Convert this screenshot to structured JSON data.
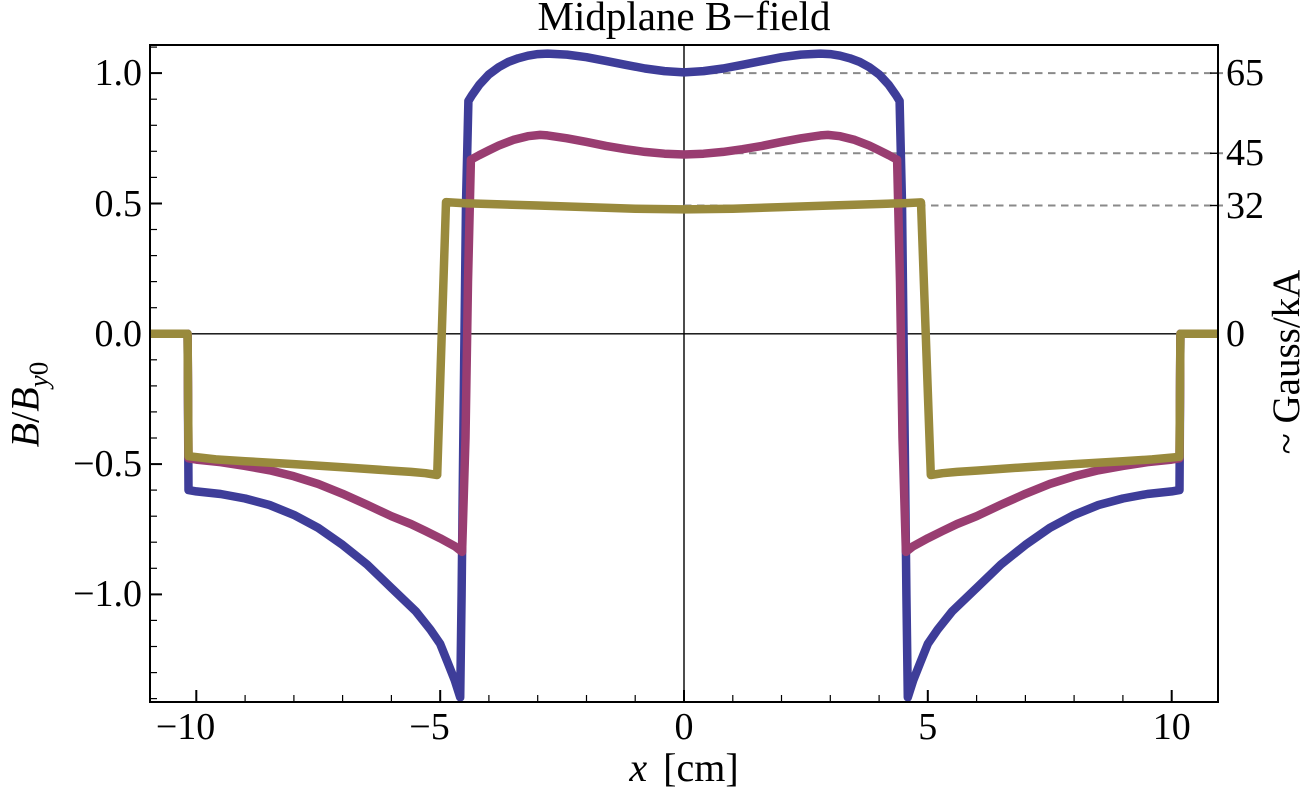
{
  "chart_data": {
    "type": "line",
    "title": "Midplane B−field",
    "xlabel": {
      "variable": "x",
      "unit": "[cm]"
    },
    "ylabel_left": {
      "numerator": "B",
      "slash": "/",
      "denominator": "B",
      "sub_italic": "y",
      "sub_roman": "0"
    },
    "ylabel_right": "~ Gauss/kA",
    "xlim": [
      -10.95,
      10.95
    ],
    "ylim": [
      -1.413,
      1.108
    ],
    "grid": "off",
    "legend": "none",
    "x_ticks": [
      {
        "label": "−10",
        "value": -10
      },
      {
        "label": "−5",
        "value": -5
      },
      {
        "label": "0",
        "value": 0
      },
      {
        "label": "5",
        "value": 5
      },
      {
        "label": "10",
        "value": 10
      }
    ],
    "x_minor_step": 1,
    "y_ticks": [
      {
        "label": "1.0",
        "value": 1.0
      },
      {
        "label": "0.5",
        "value": 0.5
      },
      {
        "label": "0.0",
        "value": 0.0
      },
      {
        "label": "−0.5",
        "value": -0.5
      },
      {
        "label": "−1.0",
        "value": -1.0
      }
    ],
    "y_minor_step": 0.1,
    "right_axis_labels": [
      {
        "label": "65",
        "B": 1.0
      },
      {
        "label": "45",
        "B": 0.6923
      },
      {
        "label": "32",
        "B": 0.4923
      },
      {
        "label": "0",
        "B": 0.0
      }
    ],
    "dashed_guides_B": [
      1.0,
      0.6923,
      0.4923
    ],
    "dashed_guides_start_x": 0,
    "colors": {
      "frame": "#000000",
      "axis": "#000000",
      "dashed_guide": "#8a8a8a",
      "series_blue": "#3E3D99",
      "series_magenta": "#993D71",
      "series_yellow": "#998A3D"
    },
    "series": [
      {
        "name": "series-blue-65GausskA",
        "color": "#3E3D99",
        "center_value_B": 1.0,
        "points": [
          [
            -10.95,
            0
          ],
          [
            -10.18,
            0
          ],
          [
            -10.16,
            -0.6
          ],
          [
            -10.0,
            -0.605
          ],
          [
            -9.5,
            -0.615
          ],
          [
            -9.0,
            -0.632
          ],
          [
            -8.5,
            -0.657
          ],
          [
            -8.0,
            -0.695
          ],
          [
            -7.5,
            -0.745
          ],
          [
            -7.0,
            -0.81
          ],
          [
            -6.5,
            -0.885
          ],
          [
            -6.0,
            -0.975
          ],
          [
            -5.5,
            -1.065
          ],
          [
            -5.2,
            -1.135
          ],
          [
            -5.0,
            -1.19
          ],
          [
            -4.85,
            -1.26
          ],
          [
            -4.7,
            -1.33
          ],
          [
            -4.59,
            -1.395
          ],
          [
            -4.56,
            -1.0
          ],
          [
            -4.52,
            -0.3
          ],
          [
            -4.47,
            0.5
          ],
          [
            -4.42,
            0.893
          ],
          [
            -4.35,
            0.915
          ],
          [
            -4.2,
            0.955
          ],
          [
            -4.0,
            0.995
          ],
          [
            -3.8,
            1.023
          ],
          [
            -3.6,
            1.043
          ],
          [
            -3.4,
            1.057
          ],
          [
            -3.2,
            1.067
          ],
          [
            -3.0,
            1.073
          ],
          [
            -2.8,
            1.075
          ],
          [
            -2.4,
            1.071
          ],
          [
            -2.0,
            1.061
          ],
          [
            -1.6,
            1.047
          ],
          [
            -1.2,
            1.032
          ],
          [
            -0.8,
            1.018
          ],
          [
            -0.4,
            1.008
          ],
          [
            0,
            1.003
          ],
          [
            0.4,
            1.008
          ],
          [
            0.8,
            1.018
          ],
          [
            1.2,
            1.032
          ],
          [
            1.6,
            1.047
          ],
          [
            2.0,
            1.061
          ],
          [
            2.4,
            1.071
          ],
          [
            2.8,
            1.075
          ],
          [
            3.0,
            1.073
          ],
          [
            3.2,
            1.067
          ],
          [
            3.4,
            1.057
          ],
          [
            3.6,
            1.043
          ],
          [
            3.8,
            1.023
          ],
          [
            4.0,
            0.995
          ],
          [
            4.2,
            0.955
          ],
          [
            4.35,
            0.915
          ],
          [
            4.42,
            0.893
          ],
          [
            4.47,
            0.5
          ],
          [
            4.52,
            -0.3
          ],
          [
            4.56,
            -1.0
          ],
          [
            4.59,
            -1.395
          ],
          [
            4.7,
            -1.33
          ],
          [
            4.85,
            -1.26
          ],
          [
            5.0,
            -1.19
          ],
          [
            5.2,
            -1.135
          ],
          [
            5.5,
            -1.065
          ],
          [
            6.0,
            -0.975
          ],
          [
            6.5,
            -0.885
          ],
          [
            7.0,
            -0.81
          ],
          [
            7.5,
            -0.745
          ],
          [
            8.0,
            -0.695
          ],
          [
            8.5,
            -0.657
          ],
          [
            9.0,
            -0.632
          ],
          [
            9.5,
            -0.615
          ],
          [
            10.0,
            -0.605
          ],
          [
            10.16,
            -0.6
          ],
          [
            10.18,
            0
          ],
          [
            10.95,
            0
          ]
        ]
      },
      {
        "name": "series-magenta-45GausskA",
        "color": "#993D71",
        "center_value_B": 0.69,
        "points": [
          [
            -10.95,
            0
          ],
          [
            -10.18,
            0
          ],
          [
            -10.16,
            -0.478
          ],
          [
            -10.0,
            -0.483
          ],
          [
            -9.5,
            -0.493
          ],
          [
            -9.0,
            -0.507
          ],
          [
            -8.5,
            -0.524
          ],
          [
            -8.0,
            -0.547
          ],
          [
            -7.5,
            -0.576
          ],
          [
            -7.0,
            -0.614
          ],
          [
            -6.5,
            -0.656
          ],
          [
            -6.0,
            -0.7
          ],
          [
            -5.6,
            -0.73
          ],
          [
            -5.3,
            -0.757
          ],
          [
            -5.0,
            -0.785
          ],
          [
            -4.7,
            -0.815
          ],
          [
            -4.55,
            -0.837
          ],
          [
            -4.48,
            -0.4
          ],
          [
            -4.43,
            0.2
          ],
          [
            -4.37,
            0.668
          ],
          [
            -4.2,
            0.685
          ],
          [
            -4.0,
            0.704
          ],
          [
            -3.8,
            0.722
          ],
          [
            -3.5,
            0.744
          ],
          [
            -3.2,
            0.758
          ],
          [
            -2.95,
            0.763
          ],
          [
            -2.8,
            0.761
          ],
          [
            -2.4,
            0.75
          ],
          [
            -2.0,
            0.736
          ],
          [
            -1.6,
            0.721
          ],
          [
            -1.2,
            0.708
          ],
          [
            -0.8,
            0.698
          ],
          [
            -0.4,
            0.691
          ],
          [
            0,
            0.688
          ],
          [
            0.4,
            0.691
          ],
          [
            0.8,
            0.698
          ],
          [
            1.2,
            0.708
          ],
          [
            1.6,
            0.721
          ],
          [
            2.0,
            0.736
          ],
          [
            2.4,
            0.75
          ],
          [
            2.8,
            0.761
          ],
          [
            2.95,
            0.763
          ],
          [
            3.2,
            0.758
          ],
          [
            3.5,
            0.744
          ],
          [
            3.8,
            0.722
          ],
          [
            4.0,
            0.704
          ],
          [
            4.2,
            0.685
          ],
          [
            4.37,
            0.668
          ],
          [
            4.43,
            0.2
          ],
          [
            4.48,
            -0.4
          ],
          [
            4.55,
            -0.837
          ],
          [
            4.7,
            -0.815
          ],
          [
            5.0,
            -0.785
          ],
          [
            5.3,
            -0.757
          ],
          [
            5.6,
            -0.73
          ],
          [
            6.0,
            -0.7
          ],
          [
            6.5,
            -0.656
          ],
          [
            7.0,
            -0.614
          ],
          [
            7.5,
            -0.576
          ],
          [
            8.0,
            -0.547
          ],
          [
            8.5,
            -0.524
          ],
          [
            9.0,
            -0.507
          ],
          [
            9.5,
            -0.493
          ],
          [
            10.0,
            -0.483
          ],
          [
            10.16,
            -0.478
          ],
          [
            10.18,
            0
          ],
          [
            10.95,
            0
          ]
        ]
      },
      {
        "name": "series-yellow-32GausskA",
        "color": "#998A3D",
        "center_value_B": 0.49,
        "points": [
          [
            -10.95,
            0
          ],
          [
            -10.18,
            0
          ],
          [
            -10.16,
            -0.47
          ],
          [
            -9.6,
            -0.482
          ],
          [
            -9.0,
            -0.489
          ],
          [
            -8.0,
            -0.5
          ],
          [
            -7.0,
            -0.512
          ],
          [
            -6.0,
            -0.525
          ],
          [
            -5.6,
            -0.53
          ],
          [
            -5.3,
            -0.535
          ],
          [
            -5.06,
            -0.542
          ],
          [
            -4.88,
            0.505
          ],
          [
            -4.5,
            0.501
          ],
          [
            -4.0,
            0.498
          ],
          [
            -3.0,
            0.492
          ],
          [
            -2.0,
            0.486
          ],
          [
            -1.0,
            0.48
          ],
          [
            0,
            0.477
          ],
          [
            1.0,
            0.48
          ],
          [
            2.0,
            0.486
          ],
          [
            3.0,
            0.492
          ],
          [
            4.0,
            0.498
          ],
          [
            4.5,
            0.501
          ],
          [
            4.86,
            0.504
          ],
          [
            5.06,
            -0.542
          ],
          [
            5.3,
            -0.535
          ],
          [
            5.6,
            -0.53
          ],
          [
            6.0,
            -0.525
          ],
          [
            7.0,
            -0.512
          ],
          [
            8.0,
            -0.5
          ],
          [
            9.0,
            -0.489
          ],
          [
            9.6,
            -0.482
          ],
          [
            10.16,
            -0.472
          ],
          [
            10.18,
            0
          ],
          [
            10.95,
            0
          ]
        ]
      }
    ]
  }
}
